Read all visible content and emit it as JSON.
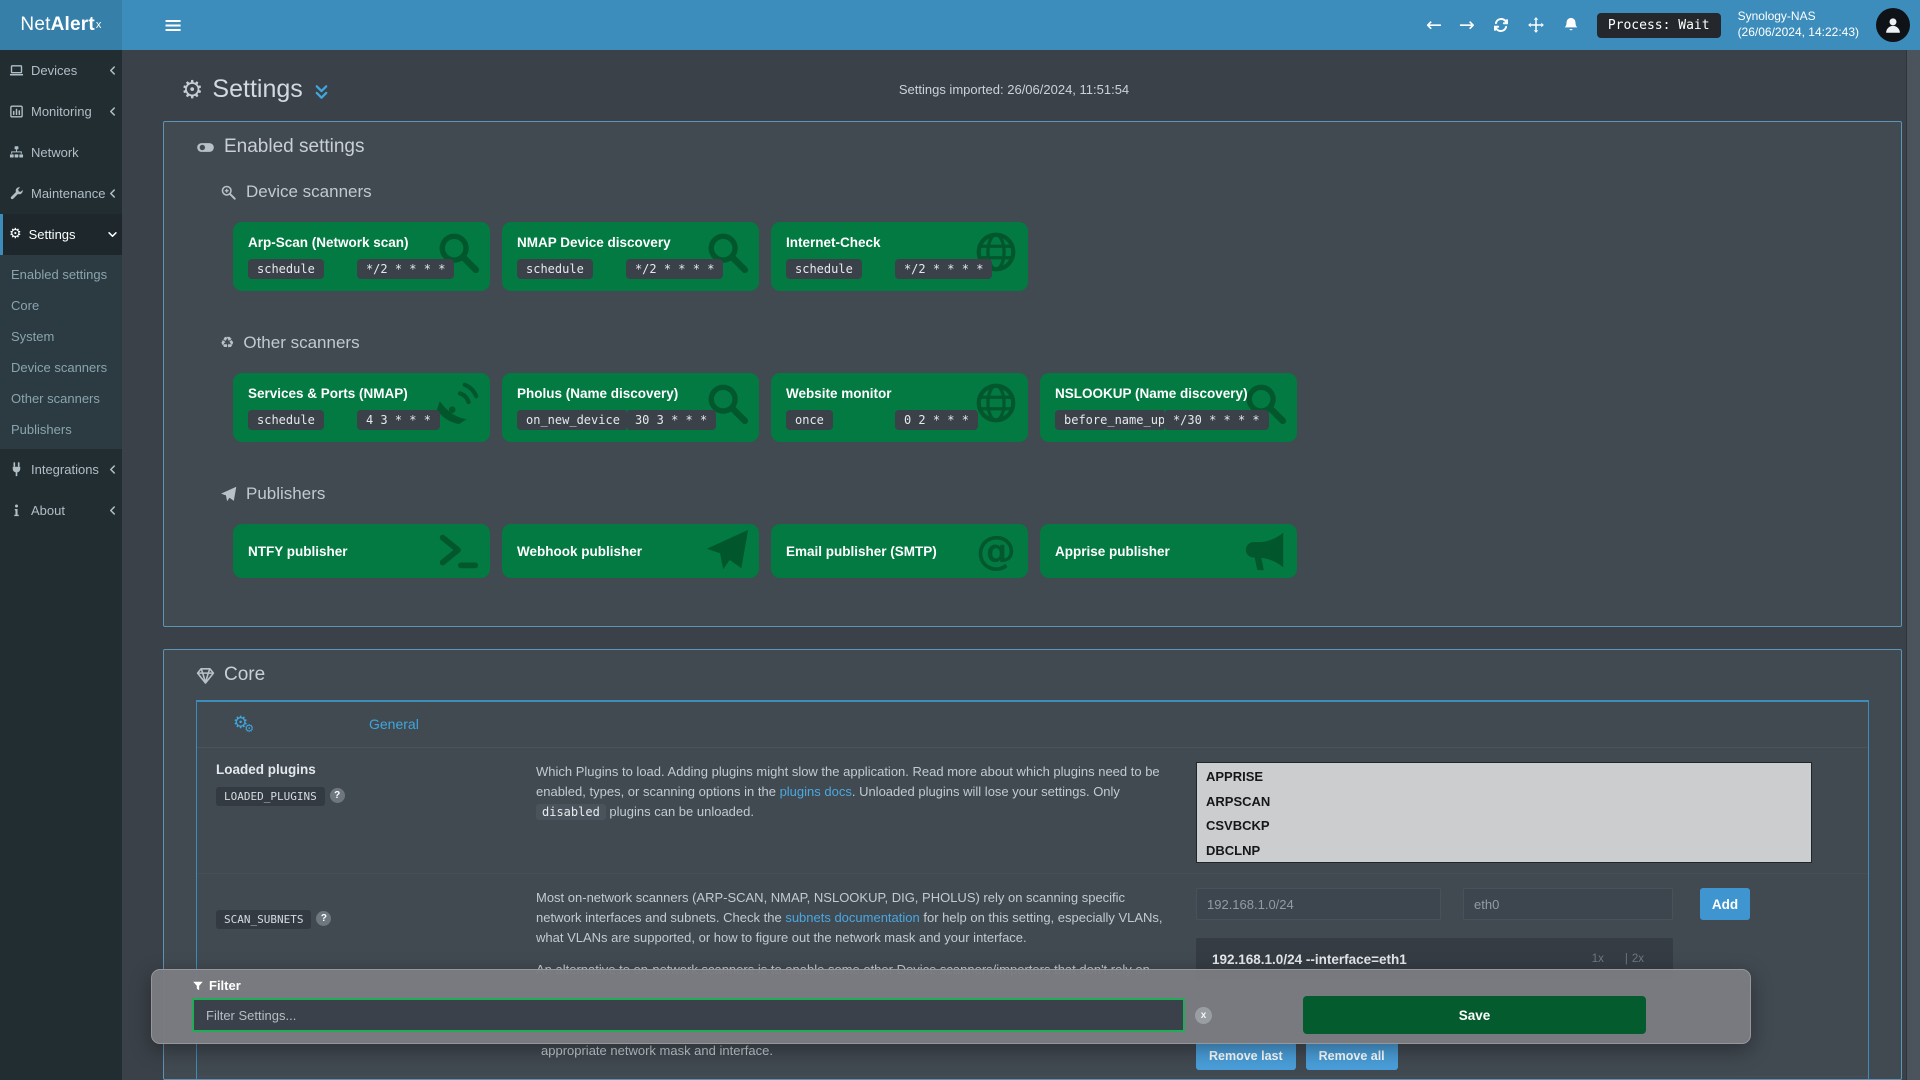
{
  "header": {
    "brand_a": "Net",
    "brand_b": "Alert",
    "brand_sup": "x",
    "process_status": "Process: Wait",
    "host_name": "Synology-NAS",
    "host_time": "(26/06/2024, 14:22:43)"
  },
  "sidebar": {
    "items": [
      {
        "label": "Devices",
        "icon": "laptop-icon",
        "chevron": "left"
      },
      {
        "label": "Monitoring",
        "icon": "chart-icon",
        "chevron": "left"
      },
      {
        "label": "Network",
        "icon": "sitemap-icon",
        "chevron": "none"
      },
      {
        "label": "Maintenance",
        "icon": "wrench-icon",
        "chevron": "left"
      },
      {
        "label": "Settings",
        "icon": "gear-icon",
        "glyph": "⚙",
        "chevron": "down",
        "active": true,
        "submenu": [
          "Enabled settings",
          "Core",
          "System",
          "Device scanners",
          "Other scanners",
          "Publishers"
        ]
      },
      {
        "label": "Integrations",
        "icon": "plug-icon",
        "chevron": "left"
      },
      {
        "label": "About",
        "icon": "info-icon",
        "chevron": "left"
      }
    ]
  },
  "page": {
    "title": "Settings",
    "imported_note": "Settings imported: 26/06/2024, 11:51:54"
  },
  "enabled_settings": {
    "heading": "Enabled settings",
    "groups": [
      {
        "heading": "Device scanners",
        "icon": "search-plus-icon",
        "cards": [
          {
            "title": "Arp-Scan (Network scan)",
            "icon": "magnifier-icon",
            "run_type": "schedule",
            "schedule": "*/2 * * * *"
          },
          {
            "title": "NMAP Device discovery",
            "icon": "magnifier-icon",
            "run_type": "schedule",
            "schedule": "*/2 * * * *"
          },
          {
            "title": "Internet-Check",
            "icon": "globe-icon",
            "run_type": "schedule",
            "schedule": "*/2 * * * *"
          }
        ]
      },
      {
        "heading": "Other scanners",
        "icon": "recycle-icon",
        "glyph": "♻",
        "cards": [
          {
            "title": "Services & Ports (NMAP)",
            "icon": "satellite-icon",
            "run_type": "schedule",
            "schedule": "4 3 * * *"
          },
          {
            "title": "Pholus (Name discovery)",
            "icon": "magnifier-icon",
            "run_type": "on_new_device",
            "schedule": "30 3 * * *"
          },
          {
            "title": "Website monitor",
            "icon": "globe-icon",
            "run_type": "once",
            "schedule": "0 2 * * *"
          },
          {
            "title": "NSLOOKUP (Name discovery)",
            "icon": "magnifier-icon",
            "run_type": "before_name_upd",
            "schedule": "*/30 * * * *"
          }
        ]
      },
      {
        "heading": "Publishers",
        "icon": "paper-plane-icon",
        "cards": [
          {
            "title": "NTFY publisher",
            "icon": "terminal-icon"
          },
          {
            "title": "Webhook publisher",
            "icon": "paper-plane-icon"
          },
          {
            "title": "Email publisher (SMTP)",
            "icon": "at-icon",
            "glyph": "@"
          },
          {
            "title": "Apprise publisher",
            "icon": "bullhorn-icon"
          }
        ]
      }
    ]
  },
  "core": {
    "heading": "Core",
    "tab_label": "General",
    "loaded_plugins": {
      "label": "Loaded plugins",
      "key": "LOADED_PLUGINS",
      "help_glyph": "?",
      "desc_parts": [
        {
          "text": "Which Plugins to load. Adding plugins might slow the application. Read more about which plugins need to be enabled, types, or scanning options in the "
        },
        {
          "link": "plugins docs"
        },
        {
          "text": ". Unloaded plugins will lose your settings. Only "
        },
        {
          "code": "disabled"
        },
        {
          "text": " plugins can be unloaded."
        }
      ],
      "options": [
        "APPRISE",
        "ARPSCAN",
        "CSVBCKP",
        "DBCLNP"
      ]
    },
    "scan_subnets": {
      "key": "SCAN_SUBNETS",
      "help_glyph": "?",
      "desc_parts": [
        {
          "text": "Most on-network scanners (ARP-SCAN, NMAP, NSLOOKUP, DIG, PHOLUS) rely on scanning specific network interfaces and subnets. Check the "
        },
        {
          "link": "subnets documentation"
        },
        {
          "text": " for help on this setting, especially VLANs, what VLANs are supported, or how to figure out the network mask and your interface."
        }
      ],
      "desc_more": "An alternative to on-network scanners is to enable some other Device scanners/importers that don't rely on",
      "desc_tail": "appropriate network mask and interface.",
      "subnet_placeholder": "192.168.1.0/24",
      "interface_placeholder": "eth0",
      "add_label": "Add",
      "entries": [
        "192.168.1.0/24 --interface=eth1"
      ],
      "entry_meta_1": "1x",
      "entry_meta_sep": "|",
      "entry_meta_2": "2x",
      "remove_last_label": "Remove last",
      "remove_all_label": "Remove all"
    }
  },
  "filter": {
    "label": "Filter",
    "placeholder": "Filter Settings...",
    "save_label": "Save"
  },
  "colors": {
    "navbar_blue": "#3c8dbc",
    "card_green": "#027a42",
    "save_green": "#045b2d",
    "filter_border_green": "#21ad57",
    "link_blue": "#4aa8e0",
    "button_blue": "#4a9ed9"
  }
}
